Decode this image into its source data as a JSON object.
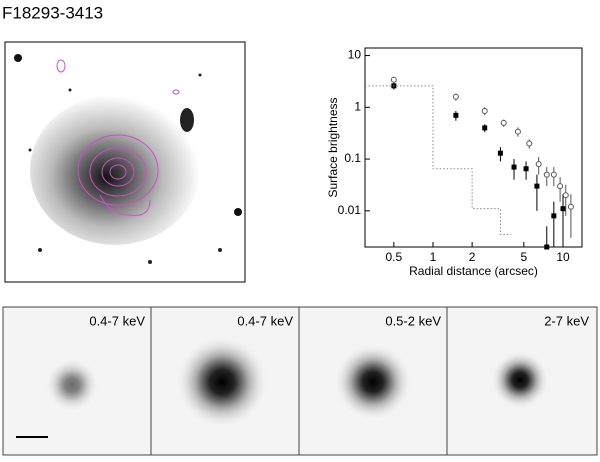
{
  "title": "F18293-3413",
  "panels": [
    "0.4-7 keV",
    "0.4-7 keV",
    "0.5-2 keV",
    "2-7 keV"
  ],
  "chart_data": {
    "type": "scatter",
    "xlabel": "Radial distance (arcsec)",
    "ylabel": "Surface brightness",
    "xlog": true,
    "ylog": true,
    "xlim": [
      0.3,
      14
    ],
    "ylim": [
      0.002,
      14
    ],
    "xticks": [
      0.5,
      1,
      2,
      5,
      10
    ],
    "yticks": [
      0.01,
      0.1,
      1,
      10
    ],
    "series": [
      {
        "marker": "filled-square",
        "color": "#000000",
        "x": [
          0.5,
          1.5,
          2.5,
          3.3,
          4.2,
          5.2,
          6.3,
          7.5,
          8.5,
          10
        ],
        "values": [
          2.6,
          0.7,
          0.4,
          0.13,
          0.07,
          0.065,
          0.03,
          0.002,
          0.008,
          0.011
        ],
        "errors": [
          0.4,
          0.15,
          0.07,
          0.04,
          0.03,
          0.025,
          0.02,
          0.003,
          0.007,
          0.01
        ]
      },
      {
        "marker": "open-circle",
        "color": "#555555",
        "x": [
          0.5,
          1.5,
          2.5,
          3.5,
          4.5,
          5.5,
          6.5,
          7.5,
          8.5,
          9.5,
          10.5,
          11.5
        ],
        "values": [
          3.4,
          1.6,
          0.85,
          0.5,
          0.34,
          0.2,
          0.08,
          0.05,
          0.05,
          0.03,
          0.02,
          0.012
        ],
        "errors": [
          0.5,
          0.25,
          0.15,
          0.08,
          0.07,
          0.04,
          0.03,
          0.02,
          0.02,
          0.015,
          0.012,
          0.009
        ]
      },
      {
        "marker": "dotted-line",
        "color": "#888888",
        "x": [
          0.3,
          1,
          1,
          2,
          2,
          3.3,
          3.3,
          4
        ],
        "values": [
          2.6,
          2.6,
          0.065,
          0.065,
          0.011,
          0.011,
          0.0035,
          0.0035
        ]
      }
    ]
  }
}
